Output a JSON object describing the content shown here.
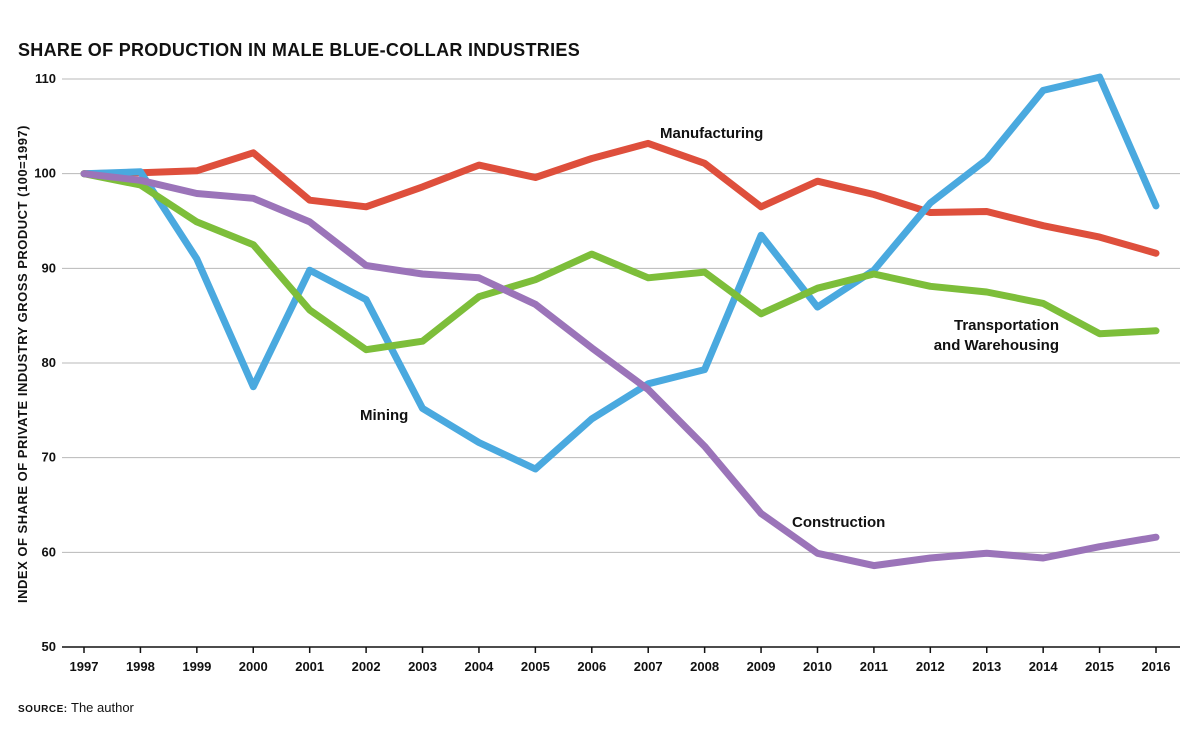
{
  "title": "SHARE OF PRODUCTION IN MALE BLUE-COLLAR INDUSTRIES",
  "source_label": "SOURCE:",
  "source_text": "The author",
  "chart_data": {
    "type": "line",
    "title": "SHARE OF PRODUCTION IN MALE BLUE-COLLAR INDUSTRIES",
    "xlabel": "",
    "ylabel": "INDEX OF SHARE OF PRIVATE INDUSTRY GROSS PRODUCT (100=1997)",
    "x": [
      "1997",
      "1998",
      "1999",
      "2000",
      "2001",
      "2002",
      "2003",
      "2004",
      "2005",
      "2006",
      "2007",
      "2008",
      "2009",
      "2010",
      "2011",
      "2012",
      "2013",
      "2014",
      "2015",
      "2016"
    ],
    "ylim": [
      50,
      110
    ],
    "yticks": [
      50,
      60,
      70,
      80,
      90,
      100,
      110
    ],
    "grid": true,
    "series": [
      {
        "name": "Manufacturing",
        "label": [
          "Manufacturing"
        ],
        "color": "#de4f3c",
        "values": [
          100,
          100.1,
          100.3,
          102.2,
          97.2,
          96.5,
          98.6,
          100.9,
          99.6,
          101.6,
          103.2,
          101.1,
          96.5,
          99.2,
          97.8,
          95.9,
          96.0,
          94.5,
          93.3,
          91.6
        ]
      },
      {
        "name": "Mining",
        "label": [
          "Mining"
        ],
        "color": "#4aa9df",
        "values": [
          100,
          100.2,
          91.0,
          77.5,
          89.8,
          86.7,
          75.2,
          71.6,
          68.8,
          74.1,
          77.8,
          79.3,
          93.5,
          85.9,
          89.8,
          96.9,
          101.5,
          108.8,
          110.2,
          96.6
        ]
      },
      {
        "name": "Transportation and Warehousing",
        "label": [
          "Transportation",
          "and Warehousing"
        ],
        "color": "#7dbe3a",
        "values": [
          100,
          98.8,
          94.9,
          92.5,
          85.6,
          81.4,
          82.3,
          87.0,
          88.8,
          91.5,
          89.0,
          89.6,
          85.2,
          87.9,
          89.4,
          88.1,
          87.5,
          86.3,
          83.1,
          83.4
        ]
      },
      {
        "name": "Construction",
        "label": [
          "Construction"
        ],
        "color": "#9b74b9",
        "values": [
          100,
          99.3,
          97.9,
          97.4,
          94.9,
          90.3,
          89.4,
          89.0,
          86.2,
          81.6,
          77.2,
          71.2,
          64.1,
          59.9,
          58.6,
          59.4,
          59.9,
          59.4,
          60.6,
          61.6
        ]
      }
    ]
  }
}
